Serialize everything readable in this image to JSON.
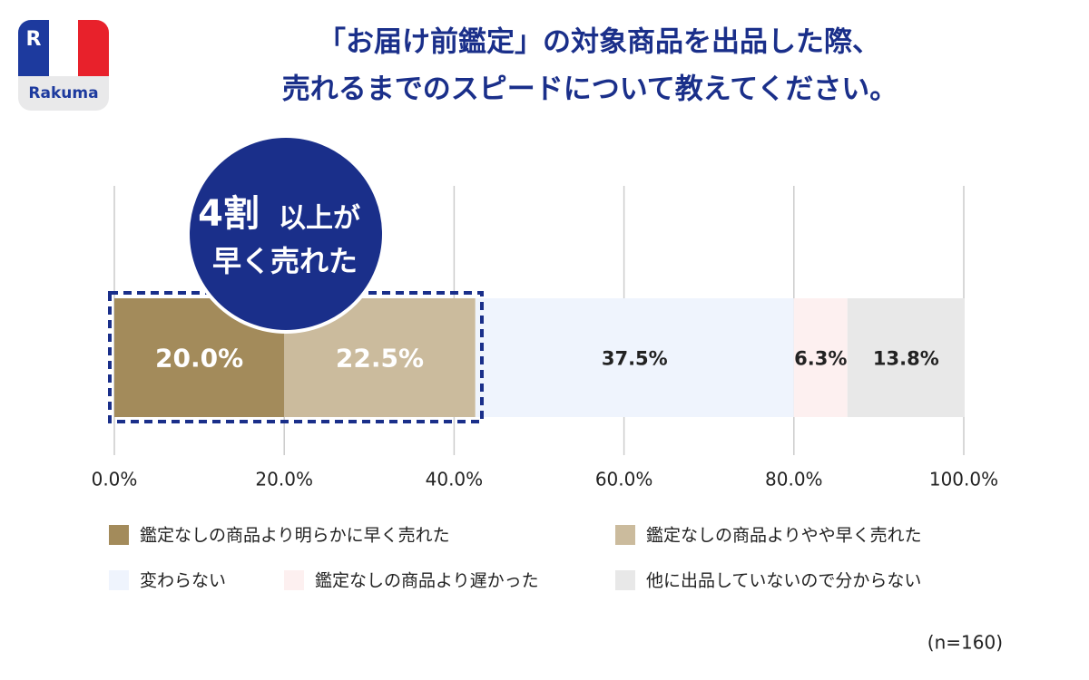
{
  "chart_data": {
    "type": "stacked-bar-horizontal",
    "title": [
      "「お届け前鑑定」の対象商品を出品した際、",
      "売れるまでのスピードについて教えてください。"
    ],
    "series": [
      {
        "name": "鑑定なしの商品より明らかに早く売れた",
        "color": "#a38b5b",
        "values": [
          20.0
        ],
        "value_labels": [
          "20.0%"
        ]
      },
      {
        "name": "鑑定なしの商品よりやや早く売れた",
        "color": "#cbbb9d",
        "values": [
          22.5
        ],
        "value_labels": [
          "22.5%"
        ]
      },
      {
        "name": "変わらない",
        "color": "#eff4fd",
        "values": [
          37.5
        ],
        "value_labels": [
          "37.5%"
        ]
      },
      {
        "name": "鑑定なしの商品より遅かった",
        "color": "#fdf0f0",
        "values": [
          6.3
        ],
        "value_labels": [
          "6.3%"
        ]
      },
      {
        "name": "他に出品していないので分からない",
        "color": "#e8e8e8",
        "values": [
          13.8
        ],
        "value_labels": [
          "13.8%"
        ]
      }
    ],
    "xlim": [
      0,
      100
    ],
    "xticks": [
      {
        "value": 0,
        "label": "0.0%"
      },
      {
        "value": 20,
        "label": "20.0%"
      },
      {
        "value": 40,
        "label": "40.0%"
      },
      {
        "value": 60,
        "label": "60.0%"
      },
      {
        "value": 80,
        "label": "80.0%"
      },
      {
        "value": 100,
        "label": "100.0%"
      }
    ],
    "grid": true,
    "annotation": [
      "4割",
      "以上が",
      "早く売れた"
    ],
    "note": "(n=160)"
  },
  "logo": {
    "mark": "R",
    "name": "Rakuma"
  }
}
